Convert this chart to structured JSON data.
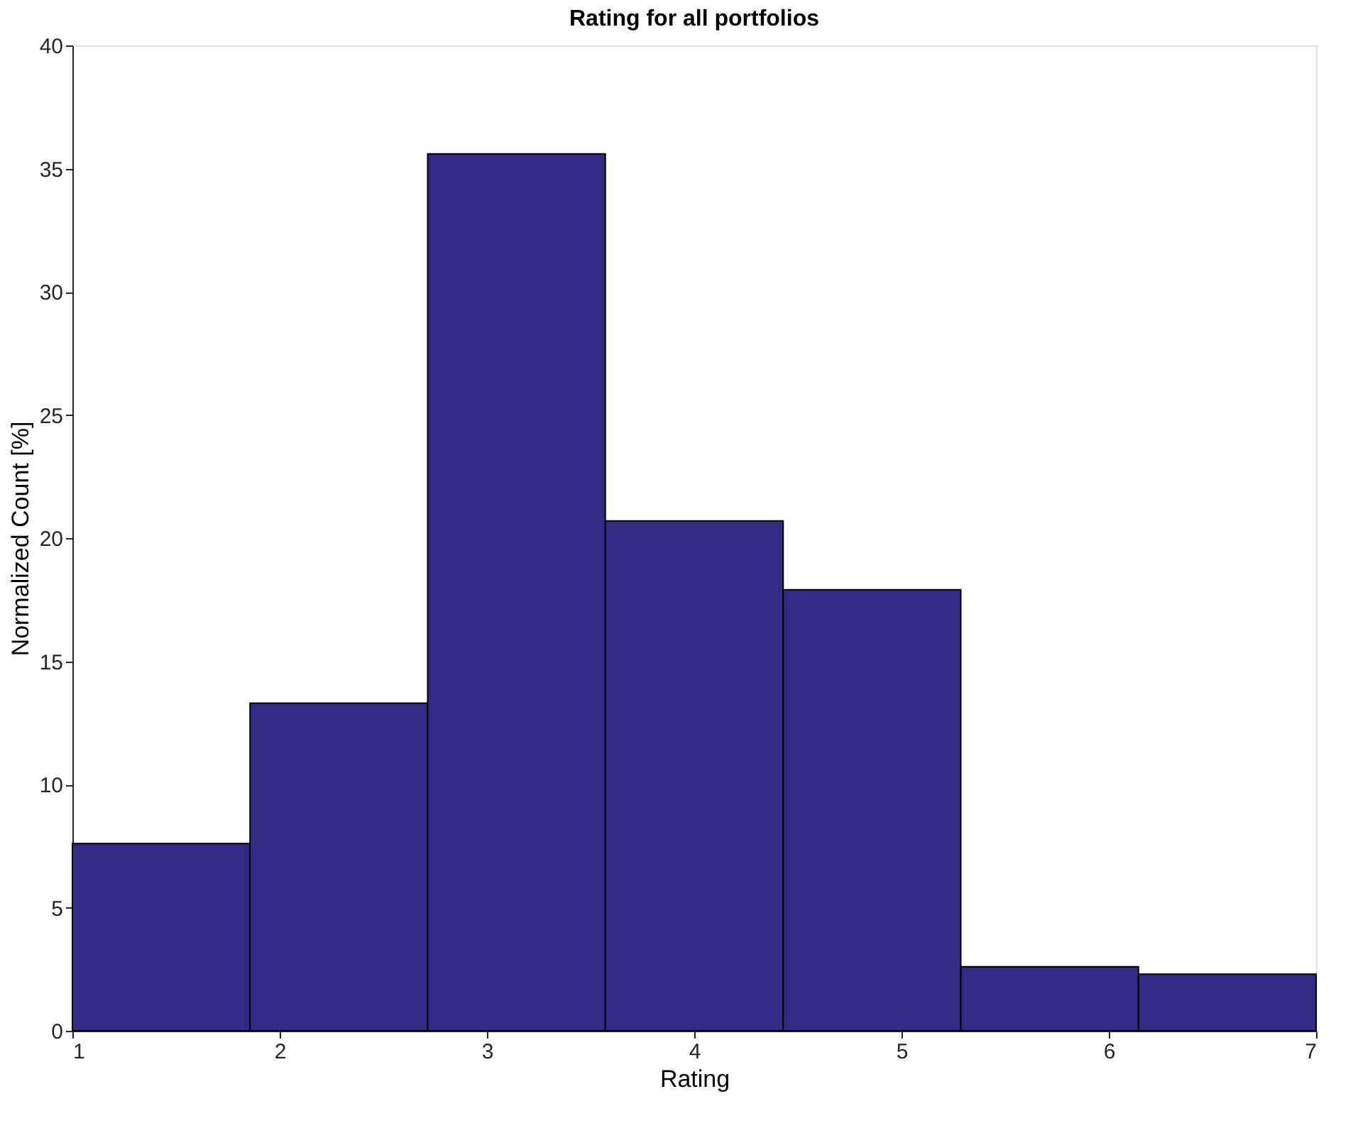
{
  "chart_data": {
    "type": "histogram",
    "title": "Rating for all portfolios",
    "xlabel": "Rating",
    "ylabel": "Normalized Count [%]",
    "bins": [
      1,
      1.857,
      2.714,
      3.571,
      4.429,
      5.286,
      6.143,
      7
    ],
    "values": [
      7.6,
      13.3,
      35.6,
      20.7,
      17.9,
      2.6,
      2.3
    ],
    "color": "#332a86",
    "xlim": [
      1,
      7
    ],
    "xticks": [
      1,
      2,
      3,
      4,
      5,
      6,
      7
    ],
    "ylim": [
      0,
      40
    ],
    "yticks": [
      0,
      5,
      10,
      15,
      20,
      25,
      30,
      35,
      40
    ],
    "grid": false
  }
}
